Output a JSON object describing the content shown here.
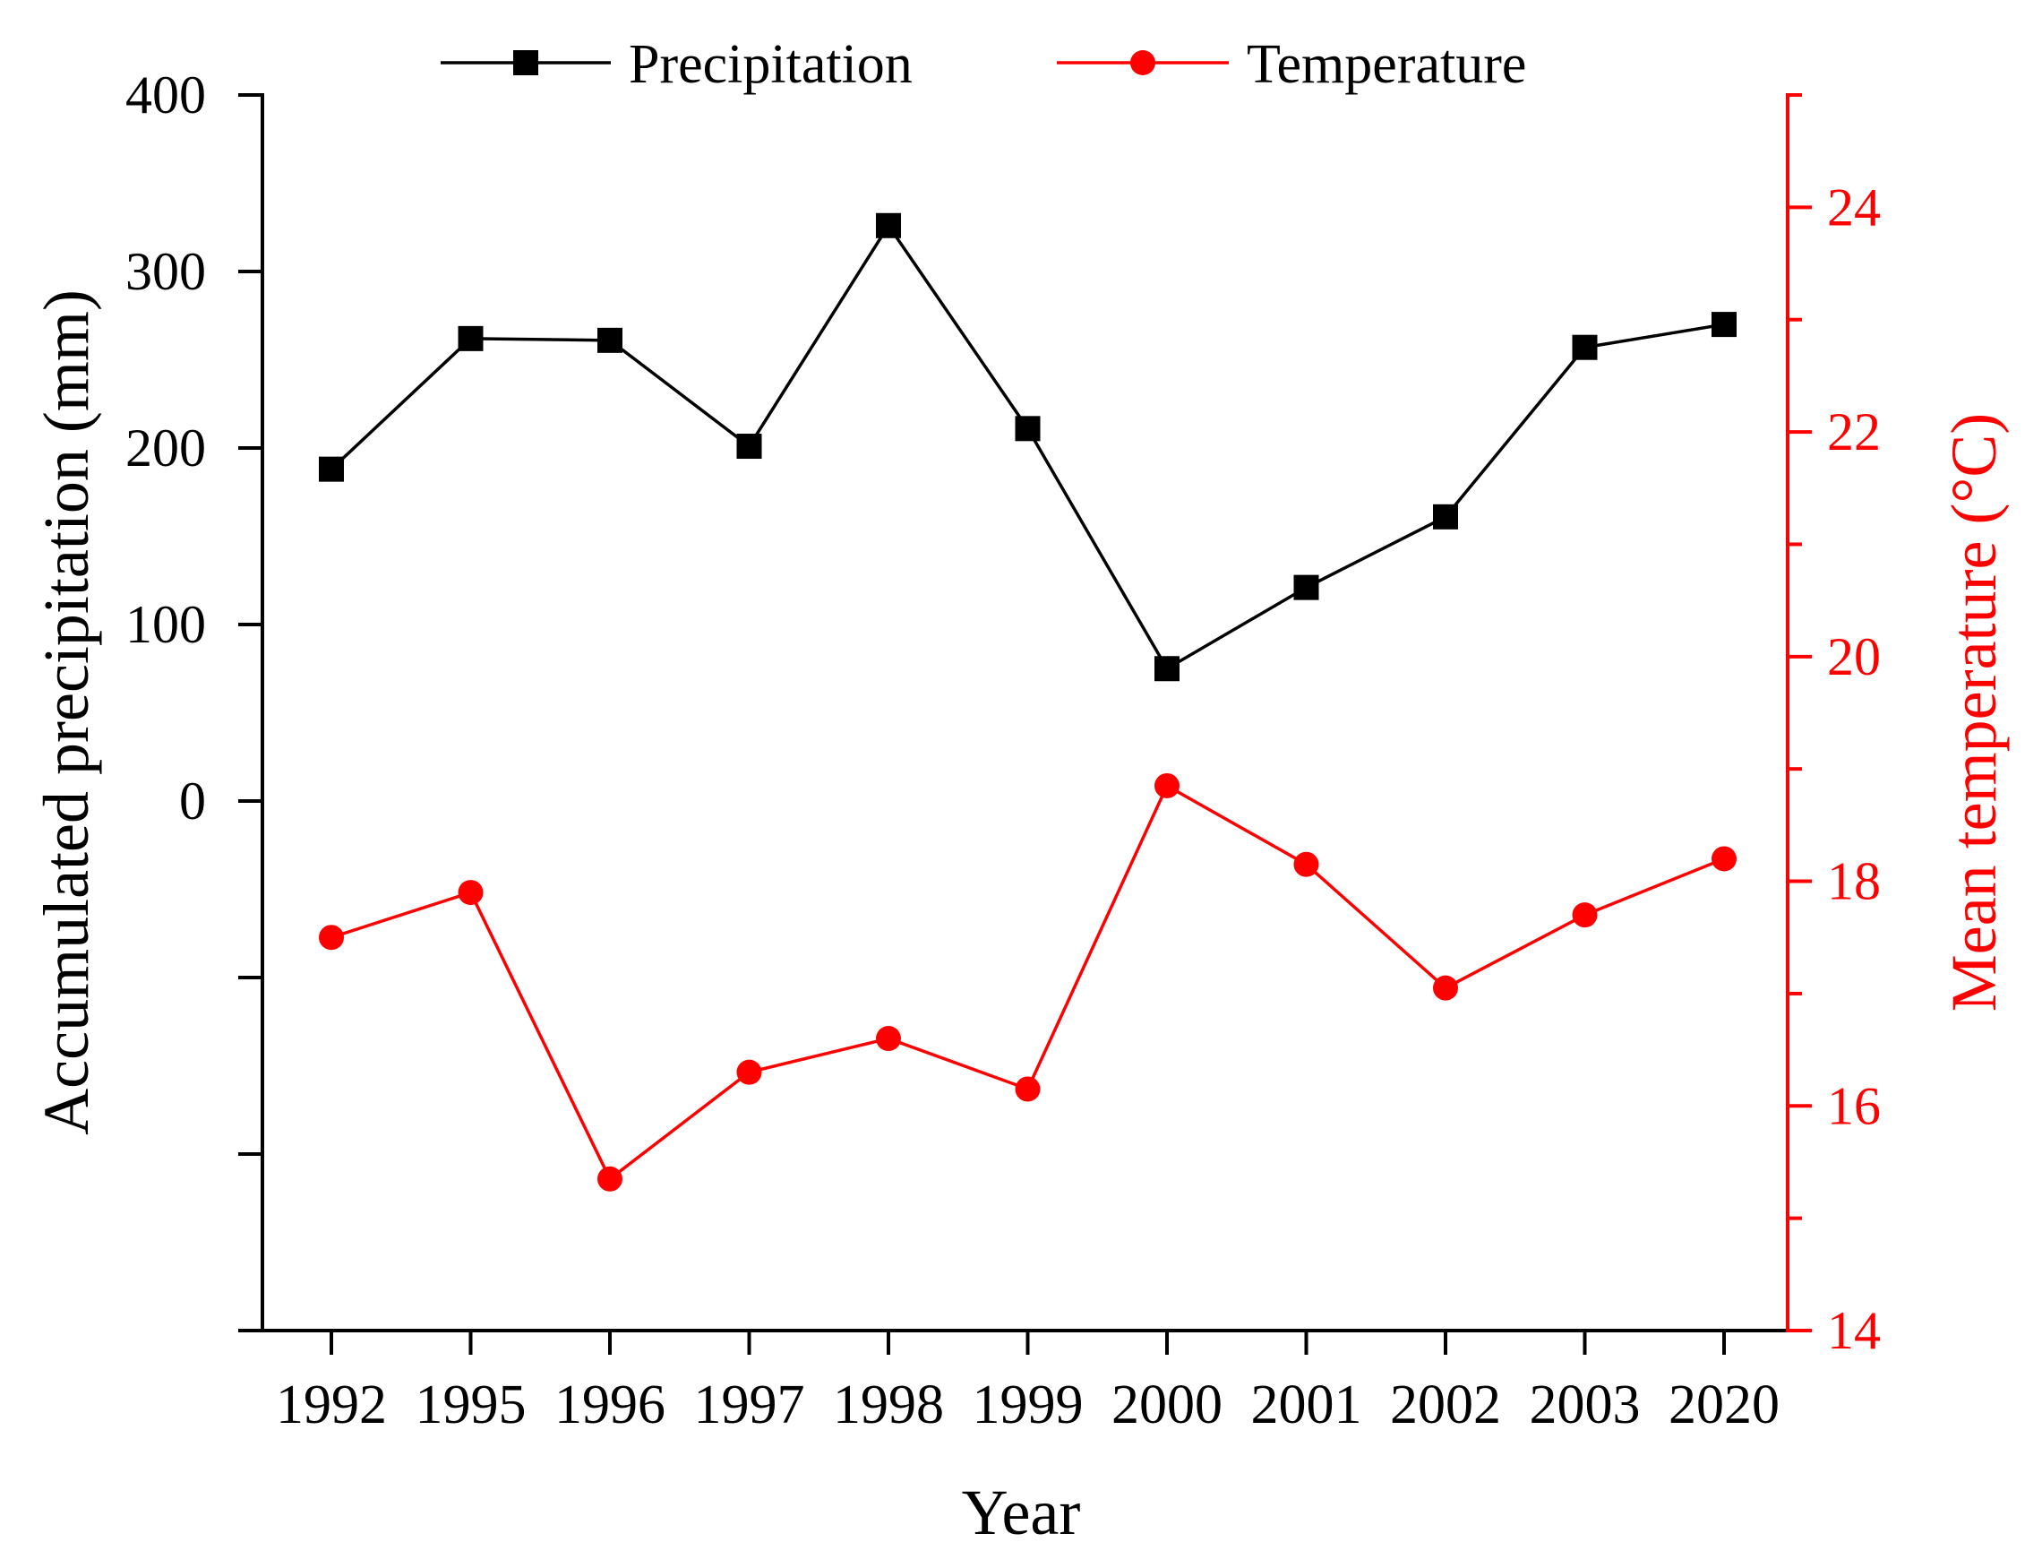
{
  "chart_data": {
    "type": "line",
    "title": "",
    "xlabel": "Year",
    "ylabel_left": "Accumulated precipitation (mm)",
    "ylabel_right": "Mean temperature (°C)",
    "categories": [
      "1992",
      "1995",
      "1996",
      "1997",
      "1998",
      "1999",
      "2000",
      "2001",
      "2002",
      "2003",
      "2020"
    ],
    "left_axis": {
      "range": [
        -300,
        400
      ],
      "major_ticks": [
        -300,
        -200,
        -100,
        0,
        100,
        200,
        300,
        400
      ],
      "tick_labels": [
        "0",
        "100",
        "200",
        "300",
        "400"
      ],
      "tick_label_values": [
        0,
        100,
        200,
        300,
        400
      ]
    },
    "right_axis": {
      "range": [
        14,
        25
      ],
      "major_ticks": [
        14,
        16,
        18,
        20,
        22,
        24
      ],
      "minor_ticks": [
        15,
        17,
        19,
        21,
        23,
        25
      ],
      "tick_labels": [
        "14",
        "16",
        "18",
        "20",
        "22",
        "24"
      ]
    },
    "series": [
      {
        "name": "Precipitation",
        "axis": "left",
        "marker": "square",
        "color": "#000000",
        "values": [
          188,
          262,
          261,
          201,
          326,
          211,
          75,
          121,
          161,
          257,
          270
        ]
      },
      {
        "name": "Temperature",
        "axis": "right",
        "marker": "circle",
        "color": "#ff0000",
        "values": [
          17.5,
          17.9,
          15.35,
          16.3,
          16.6,
          16.15,
          18.85,
          18.15,
          17.05,
          17.7,
          18.2
        ]
      }
    ],
    "legend": {
      "position": "top",
      "entries": [
        "Precipitation",
        "Temperature"
      ]
    }
  }
}
